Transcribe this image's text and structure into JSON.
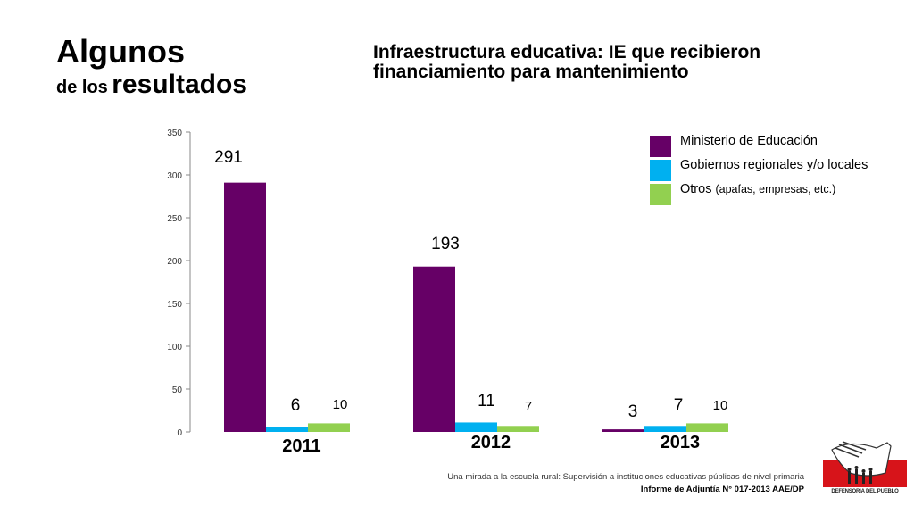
{
  "slide": {
    "title_line1": "Algunos",
    "title_line2_small": "de los",
    "title_line2_large": "resultados"
  },
  "chart_title": "Infraestructura educativa: IE que recibieron financiamiento para mantenimiento",
  "chart_data": {
    "type": "bar",
    "title": "Infraestructura educativa: IE que recibieron financiamiento para mantenimiento",
    "categories": [
      "2011",
      "2012",
      "2013"
    ],
    "series": [
      {
        "name": "Ministerio de Educación",
        "color": "#660066",
        "values": [
          291,
          193,
          3
        ]
      },
      {
        "name": "Gobiernos regionales y/o locales",
        "color": "#00B0F0",
        "values": [
          6,
          11,
          7
        ]
      },
      {
        "name": "Otros (apafas, empresas, etc.)",
        "color": "#92D050",
        "values": [
          10,
          7,
          10
        ]
      }
    ],
    "xlabel": "",
    "ylabel": "",
    "ylim": [
      0,
      350
    ],
    "yticks": [
      0,
      50,
      100,
      150,
      200,
      250,
      300,
      350
    ],
    "grid": false,
    "legend": "top-right"
  },
  "legend": {
    "items": [
      {
        "label": "Ministerio de Educación",
        "color": "#660066"
      },
      {
        "label": "Gobiernos regionales y/o locales",
        "color": "#00B0F0"
      },
      {
        "label": "Otros",
        "label_small": "(apafas, empresas, etc.)",
        "color": "#92D050"
      }
    ]
  },
  "footer": {
    "line1": "Una mirada a la escuela rural: Supervisión a instituciones educativas públicas de nivel primaria",
    "line2": "Informe de Adjuntía N° 017-2013 AAE/DP"
  },
  "logo": {
    "text": "DEFENSORIA DEL PUEBLO",
    "color": "#D7141A"
  }
}
